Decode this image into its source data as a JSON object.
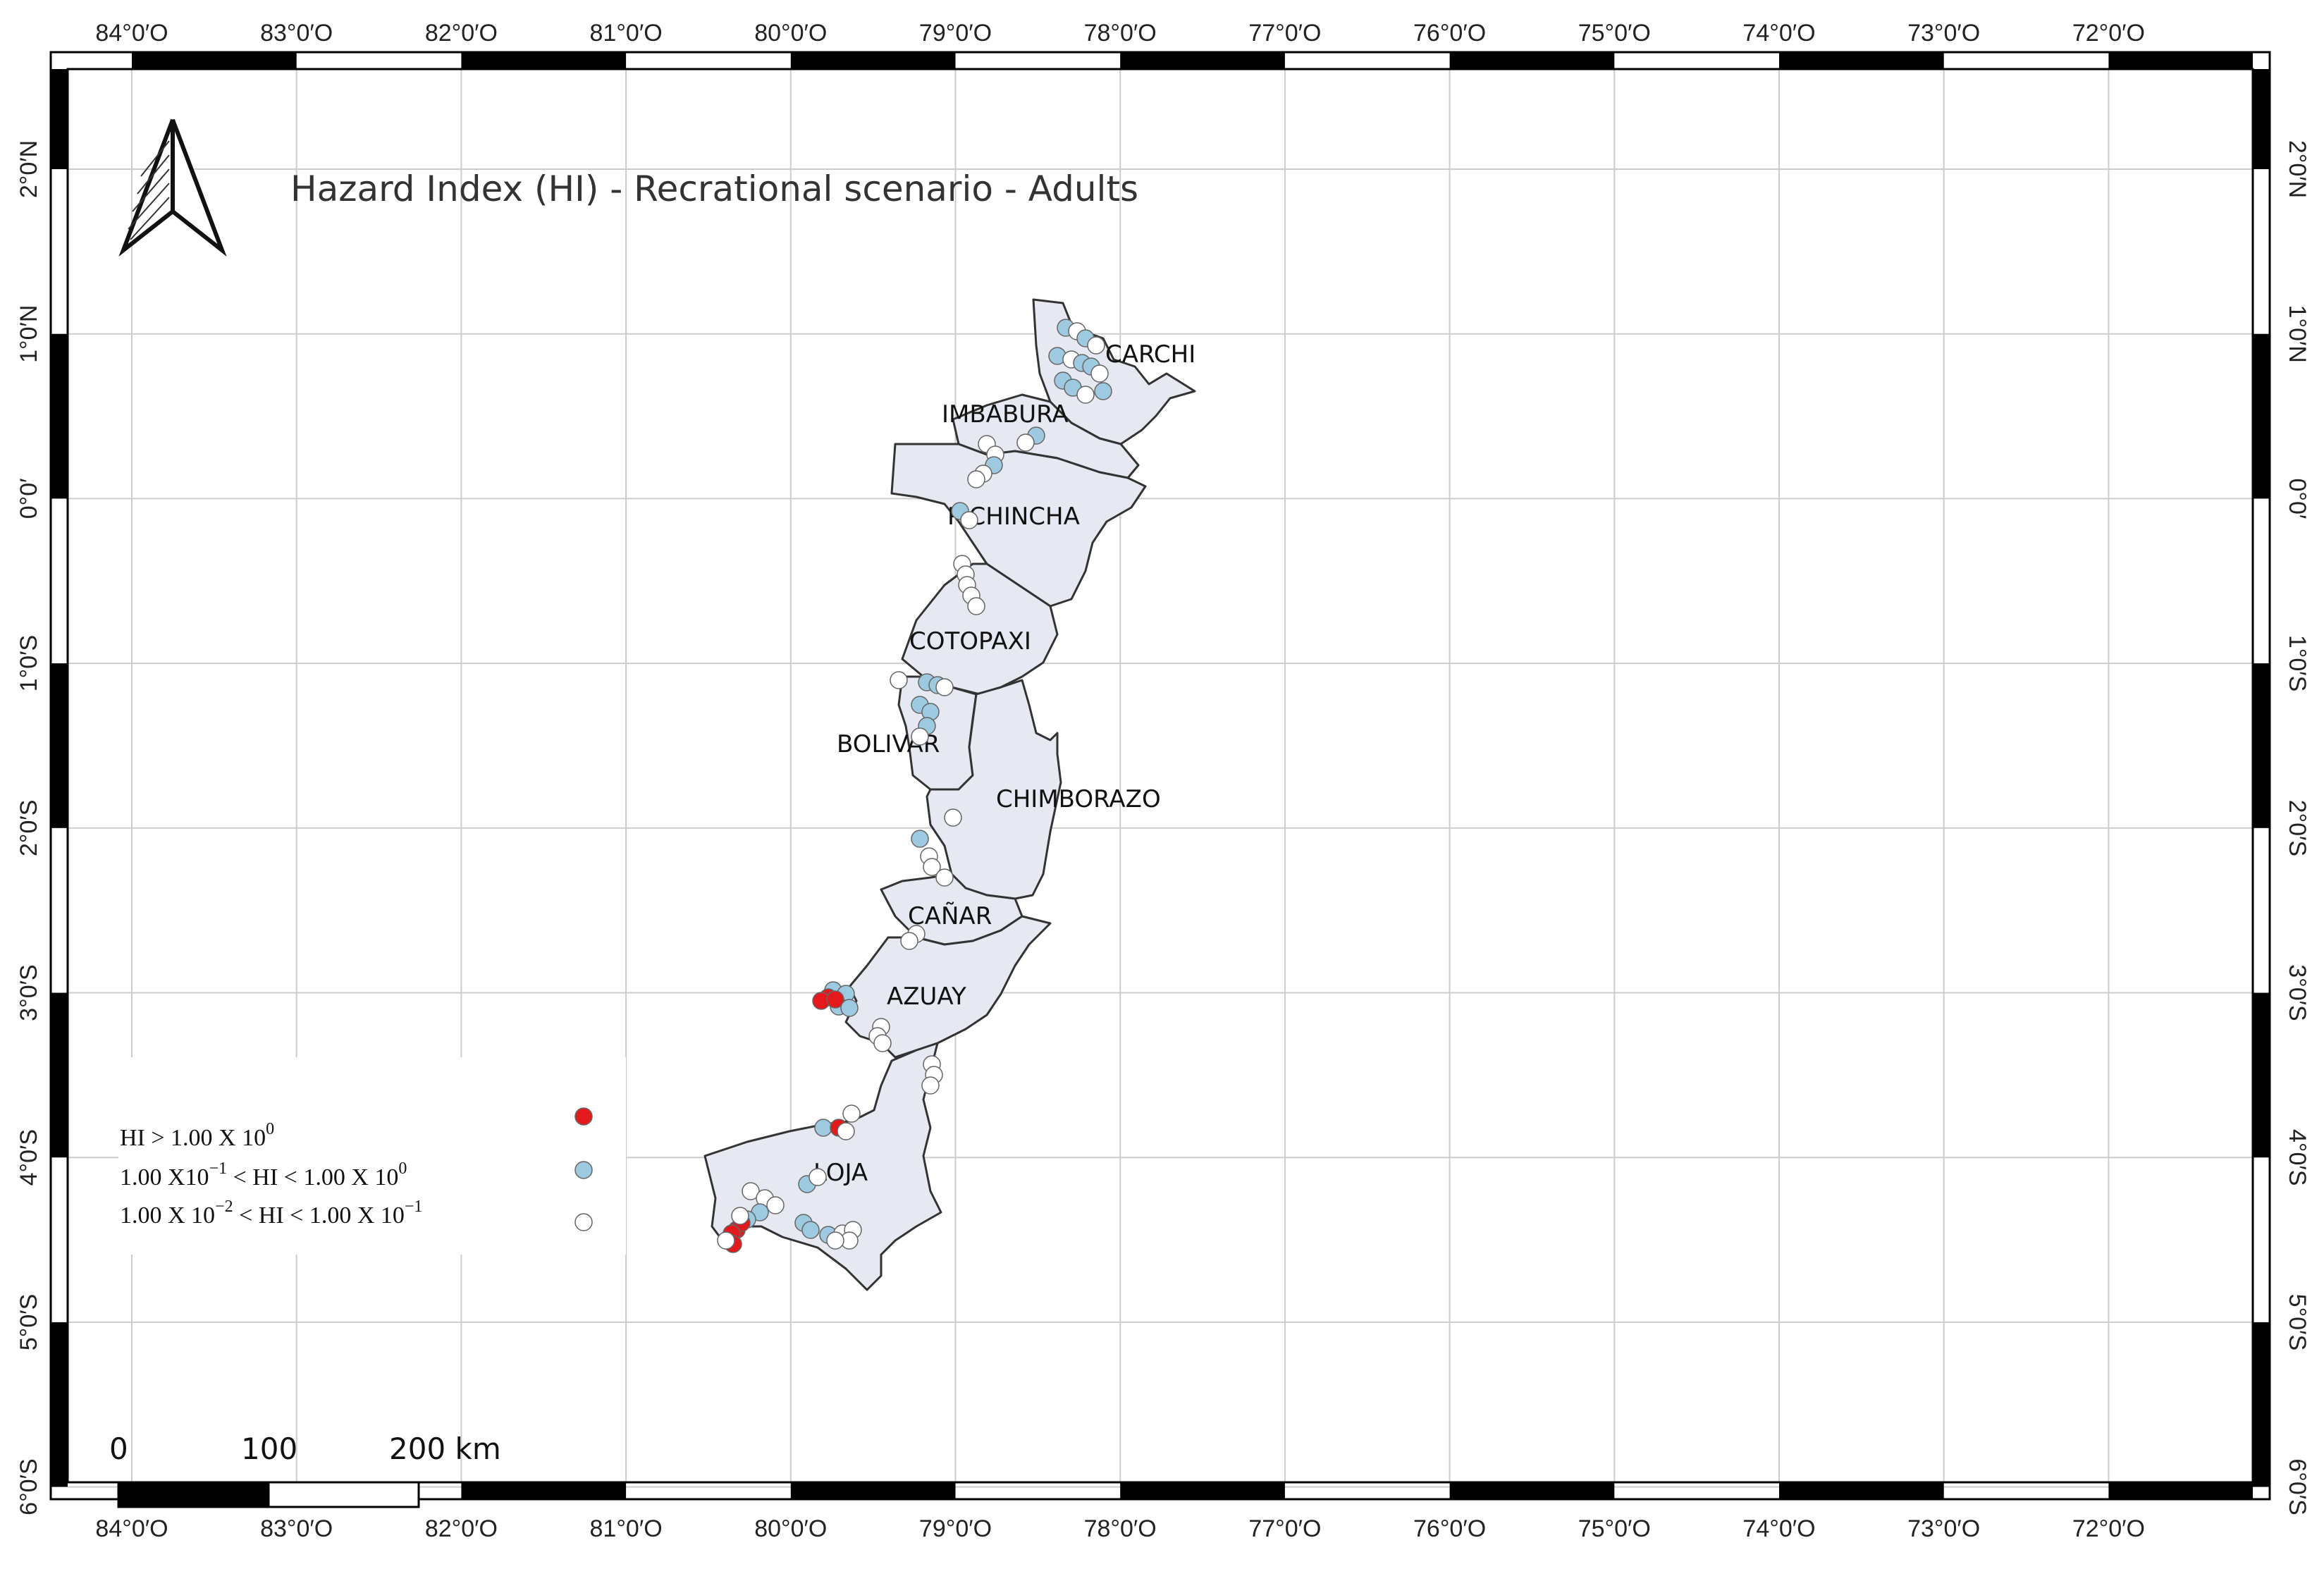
{
  "title": "Hazard Index (HI) - Recrational scenario - Adults",
  "longitude_labels": [
    "84°0′O",
    "83°0′O",
    "82°0′O",
    "81°0′O",
    "80°0′O",
    "79°0′O",
    "78°0′O",
    "77°0′O",
    "76°0′O",
    "75°0′O",
    "74°0′O",
    "73°0′O",
    "72°0′O"
  ],
  "latitude_labels": [
    "2°0′N",
    "1°0′N",
    "0°0′",
    "1°0′S",
    "2°0′S",
    "3°0′S",
    "4°0′S",
    "5°0′S",
    "6°0′S"
  ],
  "provinces": [
    "CARCHI",
    "IMBABURA",
    "PICHINCHA",
    "COTOPAXI",
    "BOLIVAR",
    "CHIMBORAZO",
    "CAÑAR",
    "AZUAY",
    "LOJA"
  ],
  "legend": {
    "items": [
      {
        "prefix": "HI > 1.00 X 10",
        "sup": "0",
        "mid": "",
        "sup2": "",
        "color": "#e3191c"
      },
      {
        "prefix": "1.00 X10",
        "sup": "−1",
        "mid": " < HI < 1.00 X 10",
        "sup2": "0",
        "color": "#9ecae1"
      },
      {
        "prefix": "1.00 X 10",
        "sup": "−2",
        "mid": " < HI < 1.00 X 10",
        "sup2": "−1",
        "color": "#ffffff"
      }
    ]
  },
  "scale_bar": {
    "labels": [
      "0",
      "100",
      "200 km"
    ]
  },
  "colors": {
    "province_fill": "#e6e9f2",
    "province_stroke": "#333333",
    "grid": "#cccccc",
    "high": "#e3191c",
    "mid": "#9ecae1",
    "low": "#ffffff"
  }
}
